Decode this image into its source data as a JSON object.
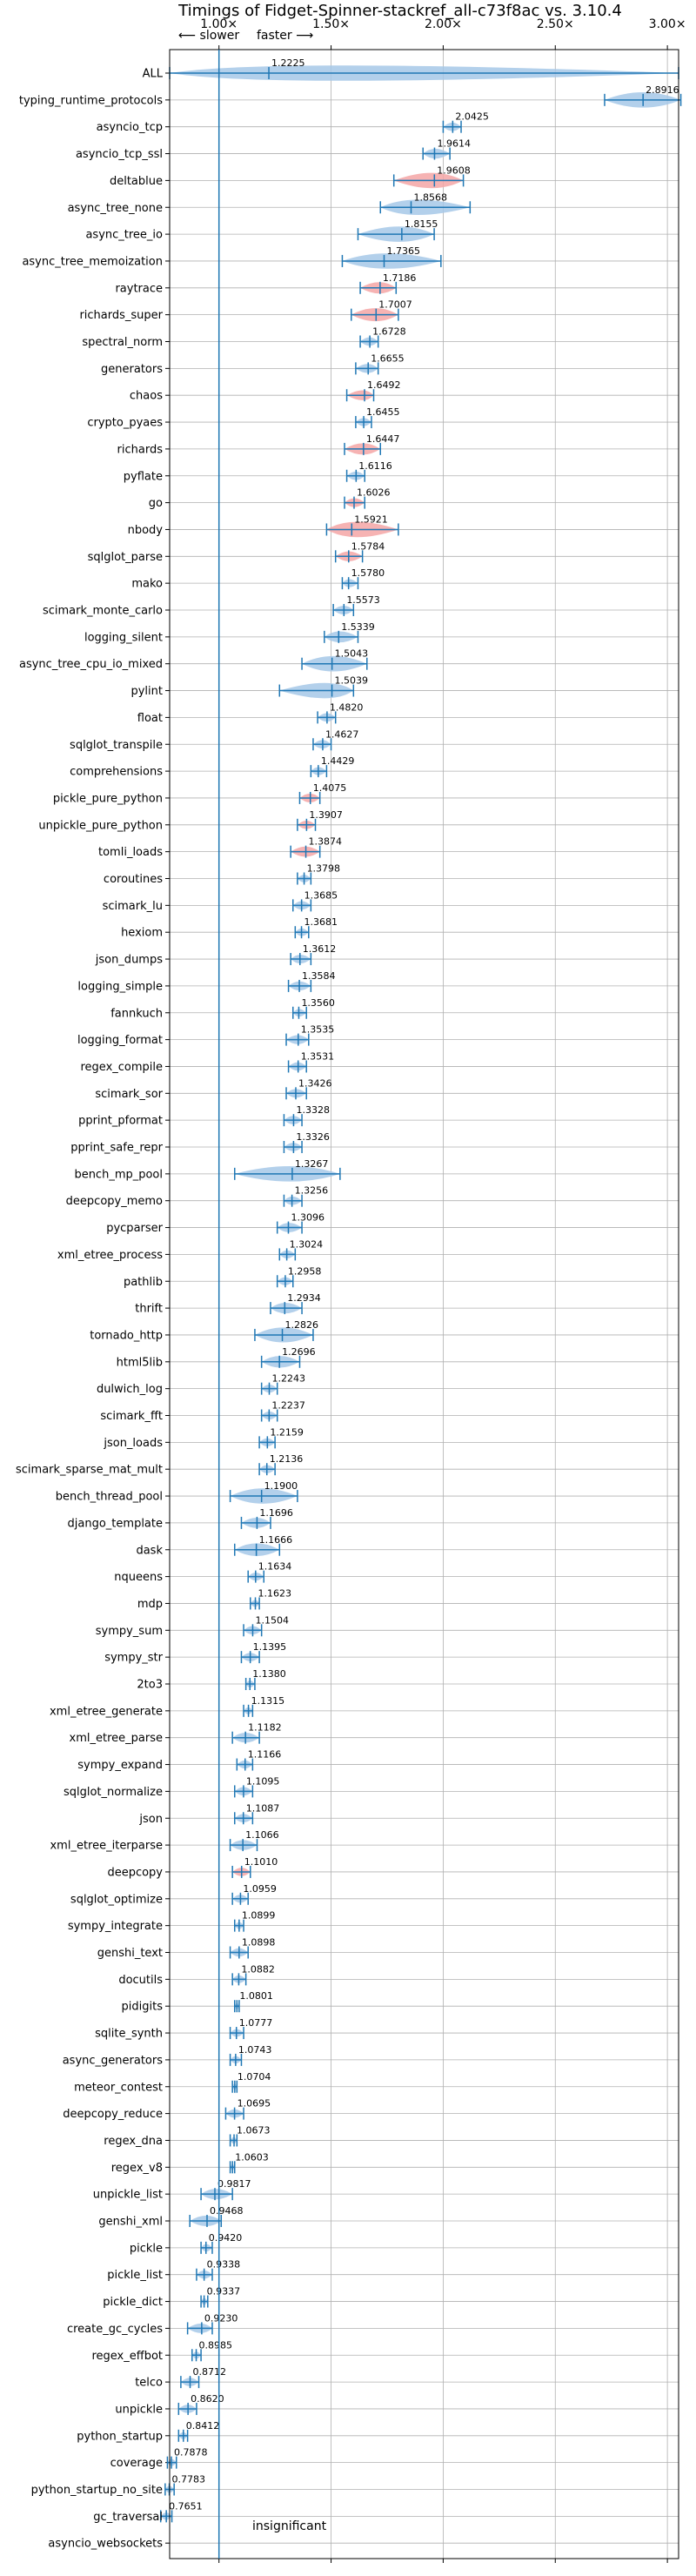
{
  "chart_data": {
    "type": "violin",
    "title": "Timings of Fidget-Spinner-stackref_all-c73f8ac vs. 3.10.4",
    "direction_labels": {
      "slower": "⟵ slower",
      "faster": "faster ⟶"
    },
    "annotation": "insignificant",
    "xlim": [
      0.78,
      3.05
    ],
    "xticks": [
      1.0,
      1.5,
      2.0,
      2.5,
      3.0
    ],
    "xtick_labels": [
      "1.00×",
      "1.50×",
      "2.00×",
      "2.50×",
      "3.00×"
    ],
    "grid": true,
    "colors": {
      "faster": "#a6c8e8",
      "slower": "#f4a6a6",
      "line": "#1f77b4",
      "grid": "#b0b0b0"
    },
    "benchmarks": [
      {
        "name": "ALL",
        "value": 1.2225,
        "lo": 0.78,
        "hi": 3.05,
        "label": "1.2225",
        "color": "blue"
      },
      {
        "name": "typing_runtime_protocols",
        "value": 2.8916,
        "lo": 2.72,
        "hi": 3.06,
        "label": "2.8916",
        "color": "blue"
      },
      {
        "name": "asyncio_tcp",
        "value": 2.0425,
        "lo": 2.0,
        "hi": 2.08,
        "label": "2.0425",
        "color": "blue"
      },
      {
        "name": "asyncio_tcp_ssl",
        "value": 1.9614,
        "lo": 1.91,
        "hi": 2.03,
        "label": "1.9614",
        "color": "blue"
      },
      {
        "name": "deltablue",
        "value": 1.9608,
        "lo": 1.78,
        "hi": 2.09,
        "label": "1.9608",
        "color": "red"
      },
      {
        "name": "async_tree_none",
        "value": 1.8568,
        "lo": 1.72,
        "hi": 2.12,
        "label": "1.8568",
        "color": "blue"
      },
      {
        "name": "async_tree_io",
        "value": 1.8155,
        "lo": 1.62,
        "hi": 1.96,
        "label": "1.8155",
        "color": "blue"
      },
      {
        "name": "async_tree_memoization",
        "value": 1.7365,
        "lo": 1.55,
        "hi": 1.99,
        "label": "1.7365",
        "color": "blue"
      },
      {
        "name": "raytrace",
        "value": 1.7186,
        "lo": 1.63,
        "hi": 1.79,
        "label": "1.7186",
        "color": "red"
      },
      {
        "name": "richards_super",
        "value": 1.7007,
        "lo": 1.59,
        "hi": 1.8,
        "label": "1.7007",
        "color": "red"
      },
      {
        "name": "spectral_norm",
        "value": 1.6728,
        "lo": 1.63,
        "hi": 1.71,
        "label": "1.6728",
        "color": "blue"
      },
      {
        "name": "generators",
        "value": 1.6655,
        "lo": 1.61,
        "hi": 1.71,
        "label": "1.6655",
        "color": "blue"
      },
      {
        "name": "chaos",
        "value": 1.6492,
        "lo": 1.57,
        "hi": 1.69,
        "label": "1.6492",
        "color": "red"
      },
      {
        "name": "crypto_pyaes",
        "value": 1.6455,
        "lo": 1.61,
        "hi": 1.68,
        "label": "1.6455",
        "color": "blue"
      },
      {
        "name": "richards",
        "value": 1.6447,
        "lo": 1.56,
        "hi": 1.72,
        "label": "1.6447",
        "color": "red"
      },
      {
        "name": "pyflate",
        "value": 1.6116,
        "lo": 1.57,
        "hi": 1.65,
        "label": "1.6116",
        "color": "blue"
      },
      {
        "name": "go",
        "value": 1.6026,
        "lo": 1.56,
        "hi": 1.65,
        "label": "1.6026",
        "color": "red"
      },
      {
        "name": "nbody",
        "value": 1.5921,
        "lo": 1.48,
        "hi": 1.8,
        "label": "1.5921",
        "color": "red"
      },
      {
        "name": "sqlglot_parse",
        "value": 1.5784,
        "lo": 1.52,
        "hi": 1.64,
        "label": "1.5784",
        "color": "red"
      },
      {
        "name": "mako",
        "value": 1.578,
        "lo": 1.55,
        "hi": 1.62,
        "label": "1.5780",
        "color": "blue"
      },
      {
        "name": "scimark_monte_carlo",
        "value": 1.5573,
        "lo": 1.51,
        "hi": 1.6,
        "label": "1.5573",
        "color": "blue"
      },
      {
        "name": "logging_silent",
        "value": 1.5339,
        "lo": 1.47,
        "hi": 1.62,
        "label": "1.5339",
        "color": "blue"
      },
      {
        "name": "async_tree_cpu_io_mixed",
        "value": 1.5043,
        "lo": 1.37,
        "hi": 1.66,
        "label": "1.5043",
        "color": "blue"
      },
      {
        "name": "pylint",
        "value": 1.5039,
        "lo": 1.27,
        "hi": 1.6,
        "label": "1.5039",
        "color": "blue"
      },
      {
        "name": "float",
        "value": 1.482,
        "lo": 1.44,
        "hi": 1.52,
        "label": "1.4820",
        "color": "blue"
      },
      {
        "name": "sqlglot_transpile",
        "value": 1.4627,
        "lo": 1.42,
        "hi": 1.5,
        "label": "1.4627",
        "color": "blue"
      },
      {
        "name": "comprehensions",
        "value": 1.4429,
        "lo": 1.41,
        "hi": 1.48,
        "label": "1.4429",
        "color": "blue"
      },
      {
        "name": "pickle_pure_python",
        "value": 1.4075,
        "lo": 1.36,
        "hi": 1.45,
        "label": "1.4075",
        "color": "red"
      },
      {
        "name": "unpickle_pure_python",
        "value": 1.3907,
        "lo": 1.35,
        "hi": 1.43,
        "label": "1.3907",
        "color": "red"
      },
      {
        "name": "tomli_loads",
        "value": 1.3874,
        "lo": 1.32,
        "hi": 1.45,
        "label": "1.3874",
        "color": "red"
      },
      {
        "name": "coroutines",
        "value": 1.3798,
        "lo": 1.35,
        "hi": 1.41,
        "label": "1.3798",
        "color": "blue"
      },
      {
        "name": "scimark_lu",
        "value": 1.3685,
        "lo": 1.33,
        "hi": 1.41,
        "label": "1.3685",
        "color": "blue"
      },
      {
        "name": "hexiom",
        "value": 1.3681,
        "lo": 1.34,
        "hi": 1.4,
        "label": "1.3681",
        "color": "blue"
      },
      {
        "name": "json_dumps",
        "value": 1.3612,
        "lo": 1.32,
        "hi": 1.41,
        "label": "1.3612",
        "color": "blue"
      },
      {
        "name": "logging_simple",
        "value": 1.3584,
        "lo": 1.31,
        "hi": 1.41,
        "label": "1.3584",
        "color": "blue"
      },
      {
        "name": "fannkuch",
        "value": 1.356,
        "lo": 1.33,
        "hi": 1.39,
        "label": "1.3560",
        "color": "blue"
      },
      {
        "name": "logging_format",
        "value": 1.3535,
        "lo": 1.3,
        "hi": 1.4,
        "label": "1.3535",
        "color": "blue"
      },
      {
        "name": "regex_compile",
        "value": 1.3531,
        "lo": 1.31,
        "hi": 1.39,
        "label": "1.3531",
        "color": "blue"
      },
      {
        "name": "scimark_sor",
        "value": 1.3426,
        "lo": 1.3,
        "hi": 1.39,
        "label": "1.3426",
        "color": "blue"
      },
      {
        "name": "pprint_pformat",
        "value": 1.3328,
        "lo": 1.29,
        "hi": 1.37,
        "label": "1.3328",
        "color": "blue"
      },
      {
        "name": "pprint_safe_repr",
        "value": 1.3326,
        "lo": 1.29,
        "hi": 1.37,
        "label": "1.3326",
        "color": "blue"
      },
      {
        "name": "bench_mp_pool",
        "value": 1.3267,
        "lo": 1.07,
        "hi": 1.54,
        "label": "1.3267",
        "color": "blue"
      },
      {
        "name": "deepcopy_memo",
        "value": 1.3256,
        "lo": 1.29,
        "hi": 1.37,
        "label": "1.3256",
        "color": "blue"
      },
      {
        "name": "pycparser",
        "value": 1.3096,
        "lo": 1.26,
        "hi": 1.37,
        "label": "1.3096",
        "color": "blue"
      },
      {
        "name": "xml_etree_process",
        "value": 1.3024,
        "lo": 1.27,
        "hi": 1.34,
        "label": "1.3024",
        "color": "blue"
      },
      {
        "name": "pathlib",
        "value": 1.2958,
        "lo": 1.26,
        "hi": 1.33,
        "label": "1.2958",
        "color": "blue"
      },
      {
        "name": "thrift",
        "value": 1.2934,
        "lo": 1.23,
        "hi": 1.37,
        "label": "1.2934",
        "color": "blue"
      },
      {
        "name": "tornado_http",
        "value": 1.2826,
        "lo": 1.16,
        "hi": 1.42,
        "label": "1.2826",
        "color": "blue"
      },
      {
        "name": "html5lib",
        "value": 1.2696,
        "lo": 1.19,
        "hi": 1.36,
        "label": "1.2696",
        "color": "blue"
      },
      {
        "name": "dulwich_log",
        "value": 1.2243,
        "lo": 1.19,
        "hi": 1.26,
        "label": "1.2243",
        "color": "blue"
      },
      {
        "name": "scimark_fft",
        "value": 1.2237,
        "lo": 1.19,
        "hi": 1.26,
        "label": "1.2237",
        "color": "blue"
      },
      {
        "name": "json_loads",
        "value": 1.2159,
        "lo": 1.18,
        "hi": 1.25,
        "label": "1.2159",
        "color": "blue"
      },
      {
        "name": "scimark_sparse_mat_mult",
        "value": 1.2136,
        "lo": 1.18,
        "hi": 1.25,
        "label": "1.2136",
        "color": "blue"
      },
      {
        "name": "bench_thread_pool",
        "value": 1.19,
        "lo": 1.05,
        "hi": 1.35,
        "label": "1.1900",
        "color": "blue"
      },
      {
        "name": "django_template",
        "value": 1.1696,
        "lo": 1.1,
        "hi": 1.23,
        "label": "1.1696",
        "color": "blue"
      },
      {
        "name": "dask",
        "value": 1.1666,
        "lo": 1.07,
        "hi": 1.27,
        "label": "1.1666",
        "color": "blue"
      },
      {
        "name": "nqueens",
        "value": 1.1634,
        "lo": 1.13,
        "hi": 1.2,
        "label": "1.1634",
        "color": "blue"
      },
      {
        "name": "mdp",
        "value": 1.1623,
        "lo": 1.14,
        "hi": 1.18,
        "label": "1.1623",
        "color": "blue"
      },
      {
        "name": "sympy_sum",
        "value": 1.1504,
        "lo": 1.11,
        "hi": 1.19,
        "label": "1.1504",
        "color": "blue"
      },
      {
        "name": "sympy_str",
        "value": 1.1395,
        "lo": 1.1,
        "hi": 1.18,
        "label": "1.1395",
        "color": "blue"
      },
      {
        "name": "2to3",
        "value": 1.138,
        "lo": 1.12,
        "hi": 1.16,
        "label": "1.1380",
        "color": "blue"
      },
      {
        "name": "xml_etree_generate",
        "value": 1.1315,
        "lo": 1.11,
        "hi": 1.15,
        "label": "1.1315",
        "color": "blue"
      },
      {
        "name": "xml_etree_parse",
        "value": 1.1182,
        "lo": 1.06,
        "hi": 1.18,
        "label": "1.1182",
        "color": "blue"
      },
      {
        "name": "sympy_expand",
        "value": 1.1166,
        "lo": 1.08,
        "hi": 1.15,
        "label": "1.1166",
        "color": "blue"
      },
      {
        "name": "sqlglot_normalize",
        "value": 1.1095,
        "lo": 1.07,
        "hi": 1.15,
        "label": "1.1095",
        "color": "blue"
      },
      {
        "name": "json",
        "value": 1.1087,
        "lo": 1.07,
        "hi": 1.15,
        "label": "1.1087",
        "color": "blue"
      },
      {
        "name": "xml_etree_iterparse",
        "value": 1.1066,
        "lo": 1.05,
        "hi": 1.17,
        "label": "1.1066",
        "color": "blue"
      },
      {
        "name": "deepcopy",
        "value": 1.101,
        "lo": 1.06,
        "hi": 1.14,
        "label": "1.1010",
        "color": "red"
      },
      {
        "name": "sqlglot_optimize",
        "value": 1.0959,
        "lo": 1.06,
        "hi": 1.13,
        "label": "1.0959",
        "color": "blue"
      },
      {
        "name": "sympy_integrate",
        "value": 1.0899,
        "lo": 1.07,
        "hi": 1.11,
        "label": "1.0899",
        "color": "blue"
      },
      {
        "name": "genshi_text",
        "value": 1.0898,
        "lo": 1.05,
        "hi": 1.13,
        "label": "1.0898",
        "color": "blue"
      },
      {
        "name": "docutils",
        "value": 1.0882,
        "lo": 1.06,
        "hi": 1.12,
        "label": "1.0882",
        "color": "blue"
      },
      {
        "name": "pidigits",
        "value": 1.0801,
        "lo": 1.07,
        "hi": 1.09,
        "label": "1.0801",
        "color": "blue"
      },
      {
        "name": "sqlite_synth",
        "value": 1.0777,
        "lo": 1.05,
        "hi": 1.11,
        "label": "1.0777",
        "color": "blue"
      },
      {
        "name": "async_generators",
        "value": 1.0743,
        "lo": 1.05,
        "hi": 1.1,
        "label": "1.0743",
        "color": "blue"
      },
      {
        "name": "meteor_contest",
        "value": 1.0704,
        "lo": 1.06,
        "hi": 1.08,
        "label": "1.0704",
        "color": "blue"
      },
      {
        "name": "deepcopy_reduce",
        "value": 1.0695,
        "lo": 1.03,
        "hi": 1.11,
        "label": "1.0695",
        "color": "blue"
      },
      {
        "name": "regex_dna",
        "value": 1.0673,
        "lo": 1.05,
        "hi": 1.08,
        "label": "1.0673",
        "color": "blue"
      },
      {
        "name": "regex_v8",
        "value": 1.0603,
        "lo": 1.05,
        "hi": 1.07,
        "label": "1.0603",
        "color": "blue"
      },
      {
        "name": "unpickle_list",
        "value": 0.9817,
        "lo": 0.92,
        "hi": 1.06,
        "label": "0.9817",
        "color": "blue"
      },
      {
        "name": "genshi_xml",
        "value": 0.9468,
        "lo": 0.87,
        "hi": 1.01,
        "label": "0.9468",
        "color": "blue"
      },
      {
        "name": "pickle",
        "value": 0.942,
        "lo": 0.92,
        "hi": 0.97,
        "label": "0.9420",
        "color": "blue"
      },
      {
        "name": "pickle_list",
        "value": 0.9338,
        "lo": 0.9,
        "hi": 0.97,
        "label": "0.9338",
        "color": "blue"
      },
      {
        "name": "pickle_dict",
        "value": 0.9337,
        "lo": 0.92,
        "hi": 0.95,
        "label": "0.9337",
        "color": "blue"
      },
      {
        "name": "create_gc_cycles",
        "value": 0.923,
        "lo": 0.86,
        "hi": 0.97,
        "label": "0.9230",
        "color": "blue"
      },
      {
        "name": "regex_effbot",
        "value": 0.8985,
        "lo": 0.88,
        "hi": 0.92,
        "label": "0.8985",
        "color": "blue"
      },
      {
        "name": "telco",
        "value": 0.8712,
        "lo": 0.83,
        "hi": 0.91,
        "label": "0.8712",
        "color": "blue"
      },
      {
        "name": "unpickle",
        "value": 0.862,
        "lo": 0.82,
        "hi": 0.9,
        "label": "0.8620",
        "color": "blue"
      },
      {
        "name": "python_startup",
        "value": 0.8412,
        "lo": 0.82,
        "hi": 0.86,
        "label": "0.8412",
        "color": "blue"
      },
      {
        "name": "coverage",
        "value": 0.7878,
        "lo": 0.77,
        "hi": 0.81,
        "label": "0.7878",
        "color": "blue"
      },
      {
        "name": "python_startup_no_site",
        "value": 0.7783,
        "lo": 0.76,
        "hi": 0.8,
        "label": "0.7783",
        "color": "blue"
      },
      {
        "name": "gc_traversal",
        "value": 0.7651,
        "lo": 0.74,
        "hi": 0.79,
        "label": "0.7651",
        "color": "blue"
      },
      {
        "name": "asyncio_websockets",
        "value": null,
        "lo": null,
        "hi": null,
        "label": "",
        "color": "none"
      }
    ]
  }
}
